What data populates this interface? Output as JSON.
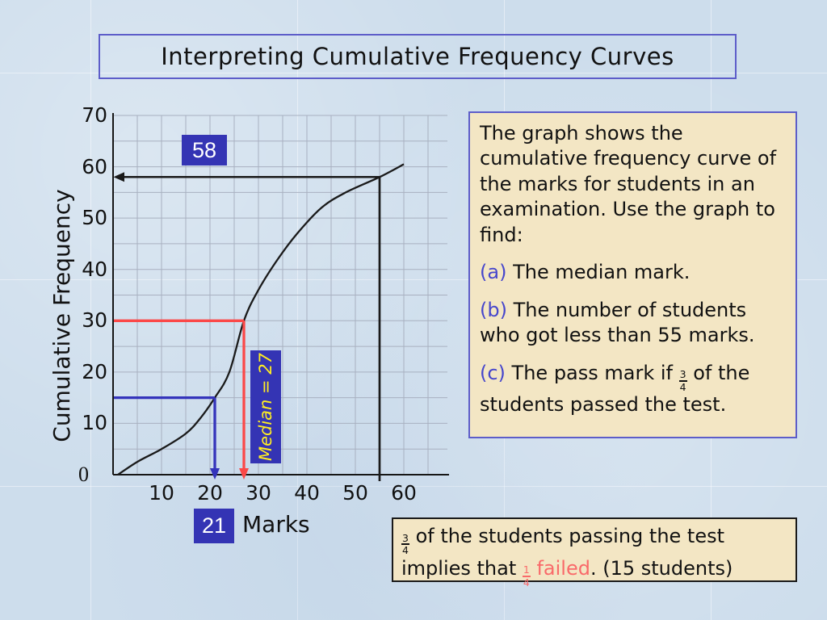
{
  "slide": {
    "title": "Interpreting Cumulative Frequency Curves"
  },
  "chart_data": {
    "type": "line",
    "title": "",
    "xlabel": "Marks",
    "ylabel": "Cumulative Frequency",
    "xlim": [
      0,
      69
    ],
    "ylim": [
      0,
      70
    ],
    "x_ticks": [
      10,
      20,
      30,
      40,
      50,
      60
    ],
    "y_ticks": [
      0,
      10,
      20,
      30,
      40,
      50,
      60,
      70
    ],
    "grid": "on",
    "grid_minor_step": 5,
    "curve": {
      "name": "cumulative-frequency-ogive",
      "points": [
        [
          1,
          0
        ],
        [
          5,
          2.5
        ],
        [
          10,
          5
        ],
        [
          15,
          8
        ],
        [
          18,
          11
        ],
        [
          21,
          15
        ],
        [
          24,
          20
        ],
        [
          27,
          30
        ],
        [
          30,
          36
        ],
        [
          34,
          42
        ],
        [
          38,
          47
        ],
        [
          43,
          52
        ],
        [
          48,
          55
        ],
        [
          55,
          58
        ],
        [
          60,
          60.5
        ]
      ]
    },
    "annotations": [
      {
        "name": "reading-at-55-marks",
        "label": "58",
        "mark": 55,
        "cf": 58,
        "style": "left-arrow-with-drop-line",
        "color": "#1a1a1a"
      },
      {
        "name": "median-reading",
        "label": "Median = 27",
        "mark": 27,
        "cf": 30,
        "style": "elbow-down-arrow",
        "color": "#fb4848"
      },
      {
        "name": "lower-quartile-reading",
        "label": "21",
        "mark": 21,
        "cf": 15,
        "style": "elbow-down-arrow",
        "color": "#3434bb"
      }
    ]
  },
  "question_box": {
    "paragraphs": [
      [
        {
          "t": "The graph shows the cumulative frequency curve of the marks for students in an examination. Use the graph to find:"
        }
      ],
      [
        {
          "t": "(a)",
          "c": "blue"
        },
        {
          "t": " The median mark."
        }
      ],
      [
        {
          "t": "(b)",
          "c": "blue"
        },
        {
          "t": " The number of students who got less than 55 marks."
        }
      ],
      [
        {
          "t": "(c)",
          "c": "blue"
        },
        {
          "t": " The pass mark if "
        },
        {
          "f": [
            "3",
            "4"
          ]
        },
        {
          "t": " of the students passed the test."
        }
      ]
    ]
  },
  "answer_box": {
    "paragraphs": [
      [
        {
          "f": [
            "3",
            "4"
          ]
        },
        {
          "t": " of the students passing the test implies that "
        },
        {
          "f": [
            "1",
            "4"
          ],
          "c": "red"
        },
        {
          "t": " failed",
          "c": "red"
        },
        {
          "t": ". (15 students)"
        }
      ]
    ]
  },
  "colors": {
    "label_box_blue": "#3434b4",
    "box_border_blue": "#5d5dc9",
    "box_cream": "#f3e6c4",
    "list_marker_blue": "#4646cc",
    "failed_red": "#f96a6a",
    "median_text_yellow": "#ffee22",
    "red_line": "#fb4848",
    "blue_line": "#3434bb",
    "curve_black": "#1a1a1a",
    "grid_gray": "#a8b0c0"
  }
}
